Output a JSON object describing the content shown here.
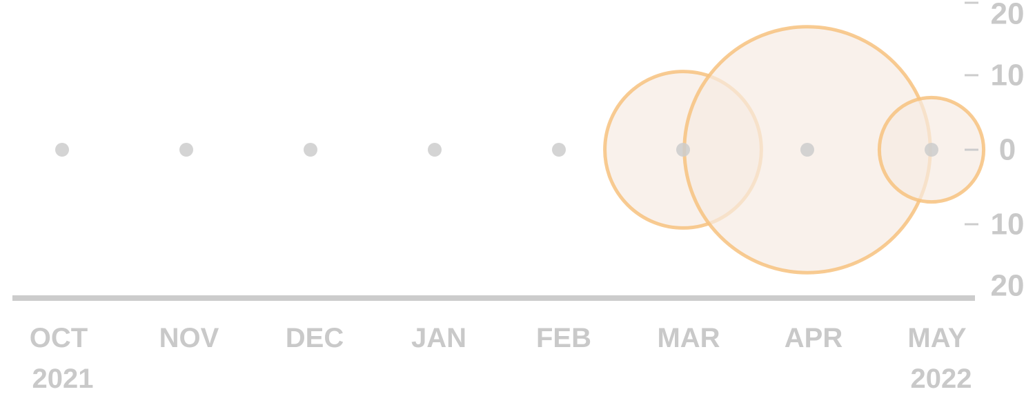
{
  "chart_data": {
    "type": "bubble",
    "title": "",
    "xlabel": "",
    "ylabel": "",
    "x": [
      "2021-10",
      "2021-11",
      "2021-12",
      "2022-01",
      "2022-02",
      "2022-03",
      "2022-04",
      "2022-05"
    ],
    "x_tick_labels": [
      {
        "month": "OCT",
        "year": "2021"
      },
      {
        "month": "NOV",
        "year": ""
      },
      {
        "month": "DEC",
        "year": ""
      },
      {
        "month": "JAN",
        "year": ""
      },
      {
        "month": "FEB",
        "year": ""
      },
      {
        "month": "MAR",
        "year": ""
      },
      {
        "month": "APR",
        "year": ""
      },
      {
        "month": "MAY",
        "year": "2022"
      }
    ],
    "y_tick_labels": [
      "20",
      "10",
      "0",
      "10",
      "20"
    ],
    "y_tick_values": [
      20,
      10,
      0,
      -10,
      -20
    ],
    "ylim": [
      -20,
      20
    ],
    "grid": false,
    "markers": {
      "x": [
        "2021-10",
        "2021-11",
        "2021-12",
        "2022-01",
        "2022-02",
        "2022-03",
        "2022-04",
        "2022-05"
      ],
      "y": [
        0,
        0,
        0,
        0,
        0,
        0,
        0,
        0
      ]
    },
    "bubbles": [
      {
        "x": "2022-03",
        "y": 0,
        "radius": 10.5
      },
      {
        "x": "2022-04",
        "y": 0,
        "radius": 16.5
      },
      {
        "x": "2022-05",
        "y": 0,
        "radius": 7
      }
    ],
    "colors": {
      "marker": "#cccccc",
      "bubble_stroke": "#f7c27f",
      "bubble_fill": "#f7ebe3",
      "axis": "#cccccc",
      "labels": "#c9c9c9"
    }
  }
}
